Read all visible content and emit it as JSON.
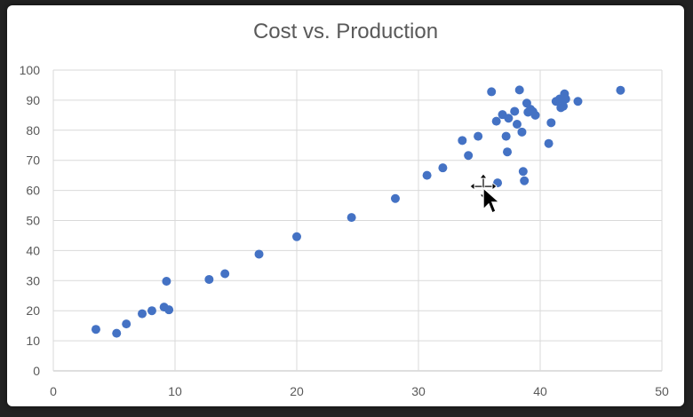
{
  "chart_data": {
    "type": "scatter",
    "title": "Cost vs. Production",
    "xlabel": "",
    "ylabel": "",
    "xlim": [
      0,
      50
    ],
    "ylim": [
      0,
      100
    ],
    "x_ticks": [
      0,
      10,
      20,
      30,
      40,
      50
    ],
    "y_ticks": [
      0,
      10,
      20,
      30,
      40,
      50,
      60,
      70,
      80,
      90,
      100
    ],
    "grid": true,
    "legend": "none",
    "colors": {
      "points": "#4472c4",
      "grid": "#d9d9d9",
      "text": "#595959"
    },
    "series": [
      {
        "x": [
          3.5,
          5.2,
          6.0,
          7.3,
          8.1,
          9.1,
          9.3,
          9.5,
          12.8,
          14.1,
          16.9,
          20.0,
          24.5,
          28.1,
          30.7,
          32.0,
          33.6,
          34.1,
          34.9,
          36.0,
          36.4,
          36.5,
          36.9,
          37.2,
          37.3,
          37.4,
          37.9,
          38.1,
          38.3,
          38.5,
          38.6,
          38.7,
          38.9,
          39.0,
          39.2,
          39.4,
          39.6,
          40.7,
          40.9,
          41.3,
          41.6,
          41.7,
          41.9,
          42.0,
          42.1,
          43.1,
          46.6
        ],
        "y": [
          13.8,
          12.5,
          15.6,
          19.0,
          20.0,
          21.2,
          29.8,
          20.3,
          30.4,
          32.3,
          38.8,
          44.6,
          51.0,
          57.3,
          65.0,
          67.5,
          76.6,
          71.6,
          78.0,
          92.8,
          83.0,
          62.5,
          85.2,
          78.0,
          72.8,
          84.0,
          86.3,
          82.0,
          93.4,
          79.4,
          66.3,
          63.2,
          89.0,
          86.0,
          87.0,
          86.2,
          85.0,
          75.6,
          82.5,
          89.6,
          90.4,
          87.5,
          88.0,
          92.1,
          90.4,
          89.6,
          93.3
        ]
      }
    ]
  }
}
